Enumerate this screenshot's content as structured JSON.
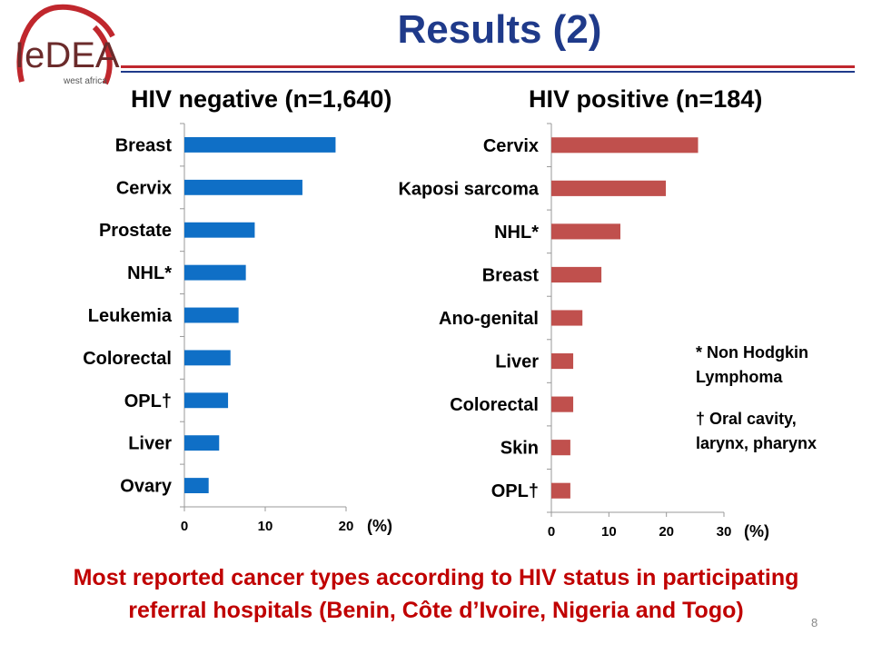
{
  "header": {
    "title": "Results (2)",
    "logo": {
      "icon": "iedea-ribbon-logo",
      "text": "IeDEA",
      "subtext": "west africa"
    }
  },
  "chart_data": [
    {
      "type": "bar",
      "orientation": "horizontal",
      "title": "HIV negative (n=1,640)",
      "categories": [
        "Breast",
        "Cervix",
        "Prostate",
        "NHL*",
        "Leukemia",
        "Colorectal",
        "OPL†",
        "Liver",
        "Ovary"
      ],
      "values": [
        18.7,
        14.6,
        8.7,
        7.6,
        6.7,
        5.7,
        5.4,
        4.3,
        3.0
      ],
      "xlim": [
        0,
        20
      ],
      "ticks": [
        "0",
        "10",
        "20"
      ],
      "unit": "(%)",
      "color": "#0f6fc6",
      "grid": false
    },
    {
      "type": "bar",
      "orientation": "horizontal",
      "title": "HIV positive (n=184)",
      "categories": [
        "Cervix",
        "Kaposi sarcoma",
        "NHL*",
        "Breast",
        "Ano-genital",
        "Liver",
        "Colorectal",
        "Skin",
        "OPL†"
      ],
      "values": [
        25.5,
        19.9,
        12.0,
        8.7,
        5.4,
        3.8,
        3.8,
        3.3,
        3.3
      ],
      "xlim": [
        0,
        30
      ],
      "ticks": [
        "0",
        "10",
        "20",
        "30"
      ],
      "unit": "(%)",
      "color": "#c0504d",
      "grid": false
    }
  ],
  "footnotes": {
    "nhl_line1": "* Non Hodgkin",
    "nhl_line2": "Lymphoma",
    "opl_line1": "† Oral cavity,",
    "opl_line2": "larynx, pharynx"
  },
  "caption": {
    "line1": "Most reported cancer types according to HIV status in participating",
    "line2": "referral hospitals (Benin, Côte d’Ivoire, Nigeria and Togo)"
  },
  "page_number": "8"
}
